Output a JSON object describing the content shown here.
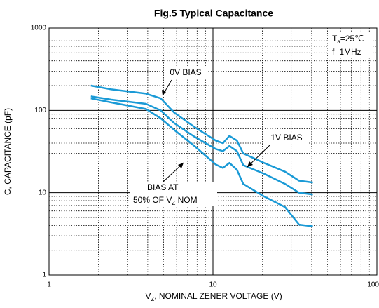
{
  "chart_data": {
    "type": "line",
    "title": "Fig.5 Typical Capacitance",
    "x_label": [
      "V",
      "Z",
      ", NOMINAL ZENER VOLTAGE (V)"
    ],
    "y_label": "C, CAPACITANCE (pF)",
    "log_x": true,
    "log_y": true,
    "grid": true,
    "minor_grid": true,
    "xlim": [
      1,
      100
    ],
    "xticks": [
      1,
      10,
      100
    ],
    "ylim": [
      1,
      1000
    ],
    "yticks": [
      1,
      10,
      100,
      1000
    ],
    "x": [
      1.8,
      2.4,
      3.9,
      4.8,
      5.8,
      7.7,
      10.4,
      11.5,
      12.6,
      14,
      15.3,
      20.5,
      27.5,
      33.5,
      40.7
    ],
    "series": [
      {
        "color": "#1a9ad6",
        "values": [
          200,
          180,
          160,
          140,
          94,
          63,
          43,
          40,
          49,
          43,
          30,
          23,
          18,
          14,
          13.3
        ]
      },
      {
        "color": "#1a9ad6",
        "values": [
          148,
          135,
          120,
          100,
          70,
          48,
          34,
          32,
          37,
          32,
          21.6,
          17,
          12.8,
          10,
          9.5
        ]
      },
      {
        "color": "#1a9ad6",
        "values": [
          140,
          125,
          104,
          80,
          58,
          37,
          22,
          20,
          23,
          19,
          12.8,
          9,
          6.7,
          4.1,
          3.9
        ]
      }
    ],
    "annotations": {
      "zero_bias": "0V BIAS",
      "one_bias": "1V BIAS",
      "bias_at": "BIAS AT",
      "fifty": [
        "50% OF V",
        "Z",
        " NOM"
      ],
      "temp": [
        "T",
        "a",
        "=25℃"
      ],
      "freq": "f=1MHz"
    }
  }
}
